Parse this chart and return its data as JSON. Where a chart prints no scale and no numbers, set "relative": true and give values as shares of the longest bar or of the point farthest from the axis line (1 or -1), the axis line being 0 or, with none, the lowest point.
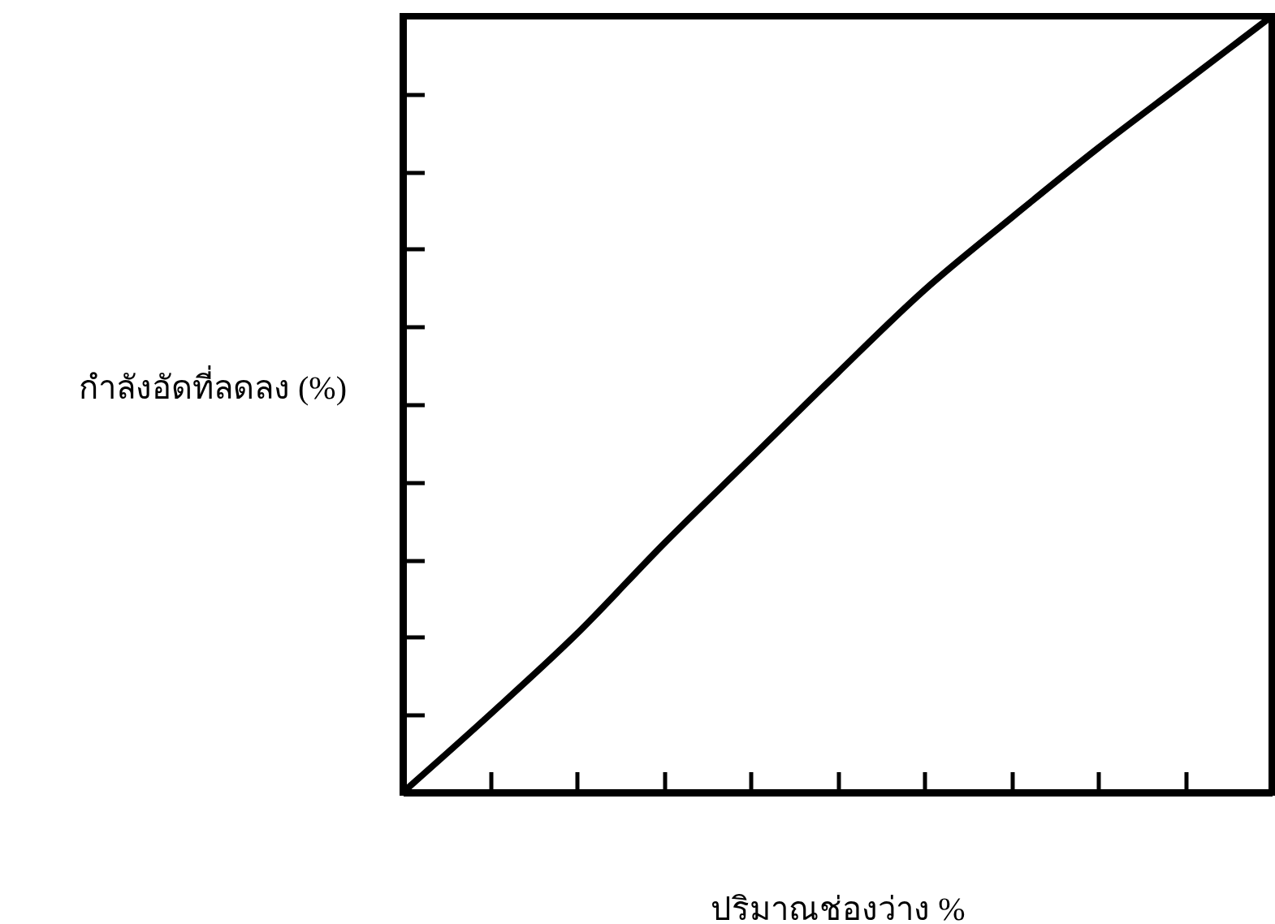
{
  "chart_data": {
    "type": "line",
    "xlabel": "ปริมาณช่องว่าง %",
    "ylabel": "กำลังอัดที่ลดลง (%)",
    "relative": true,
    "categories": [
      null,
      null,
      null,
      null,
      null,
      null,
      null,
      null,
      null,
      null,
      null
    ],
    "series": [
      {
        "color": "#000000",
        "values": [
          0,
          0.1,
          0.204,
          0.32,
          0.43,
          0.54,
          0.647,
          0.74,
          0.83,
          0.915,
          1
        ]
      }
    ],
    "grid": false,
    "marker": "none",
    "line_style": "solid"
  }
}
